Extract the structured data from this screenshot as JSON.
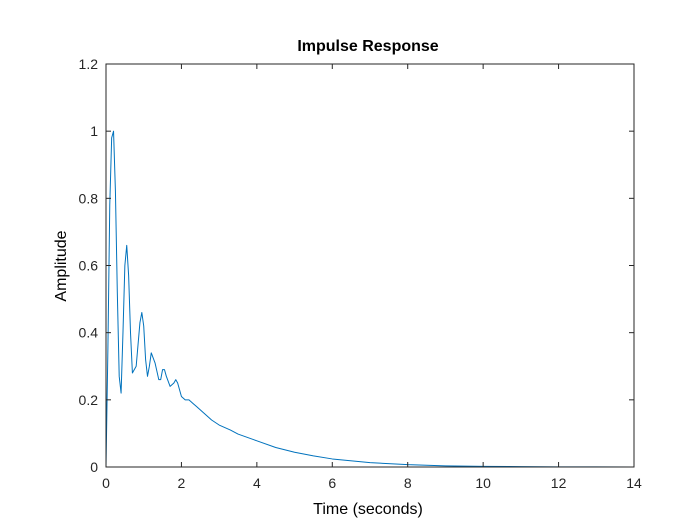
{
  "chart_data": {
    "type": "line",
    "title": "Impulse Response",
    "xlabel": "Time (seconds)",
    "ylabel": "Amplitude",
    "xlim": [
      0,
      14
    ],
    "ylim": [
      0,
      1.2
    ],
    "xticks": [
      "0",
      "2",
      "4",
      "6",
      "8",
      "10",
      "12",
      "14"
    ],
    "yticks": [
      "0",
      "0.2",
      "0.4",
      "0.6",
      "0.8",
      "1",
      "1.2"
    ],
    "grid": false,
    "line_color": "#0072BD",
    "series": [
      {
        "x": [
          0,
          0.05,
          0.1,
          0.15,
          0.2,
          0.25,
          0.3,
          0.35,
          0.4,
          0.45,
          0.5,
          0.55,
          0.6,
          0.65,
          0.7,
          0.8,
          0.9,
          0.95,
          1.0,
          1.05,
          1.1,
          1.15,
          1.2,
          1.3,
          1.4,
          1.45,
          1.5,
          1.55,
          1.6,
          1.7,
          1.8,
          1.85,
          1.9,
          1.95,
          2.0,
          2.1,
          2.2,
          2.3,
          2.4,
          2.5,
          2.6,
          2.7,
          2.8,
          3.0,
          3.3,
          3.5,
          4.0,
          4.5,
          5.0,
          5.5,
          6.0,
          7.0,
          8.0,
          9.0,
          10.0,
          11.0,
          12.0,
          13.0,
          14.0
        ],
        "y": [
          0,
          0.35,
          0.78,
          0.98,
          1.0,
          0.82,
          0.52,
          0.27,
          0.22,
          0.4,
          0.6,
          0.66,
          0.57,
          0.4,
          0.28,
          0.3,
          0.43,
          0.46,
          0.42,
          0.32,
          0.27,
          0.3,
          0.34,
          0.31,
          0.26,
          0.26,
          0.29,
          0.29,
          0.27,
          0.24,
          0.25,
          0.26,
          0.25,
          0.23,
          0.21,
          0.2,
          0.2,
          0.19,
          0.18,
          0.17,
          0.16,
          0.15,
          0.14,
          0.125,
          0.11,
          0.098,
          0.078,
          0.058,
          0.044,
          0.033,
          0.024,
          0.013,
          0.007,
          0.0035,
          0.002,
          0.001,
          0.0005,
          0.0002,
          0.0001
        ]
      }
    ]
  }
}
